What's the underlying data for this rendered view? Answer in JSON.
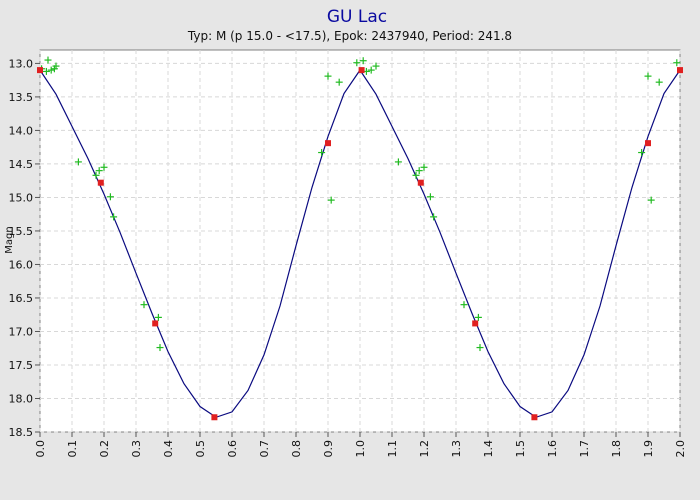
{
  "chart_data": {
    "type": "scatter",
    "title": "GU Lac",
    "subtitle": "Typ: M (p 15.0 - <17.5), Epok: 2437940, Period: 241.8",
    "xlabel": "",
    "ylabel": "Magn",
    "xlim": [
      0.0,
      2.0
    ],
    "ylim": [
      18.5,
      12.8
    ],
    "y_inverted": true,
    "grid": true,
    "x_ticks": [
      "0.0",
      "0.1",
      "0.2",
      "0.3",
      "0.4",
      "0.5",
      "0.6",
      "0.7",
      "0.8",
      "0.9",
      "1.0",
      "1.1",
      "1.2",
      "1.3",
      "1.4",
      "1.5",
      "1.6",
      "1.7",
      "1.8",
      "1.9",
      "2.0"
    ],
    "y_ticks": [
      "13.0",
      "13.5",
      "14.0",
      "14.5",
      "15.0",
      "15.5",
      "16.0",
      "16.5",
      "17.0",
      "17.5",
      "18.0",
      "18.5"
    ],
    "colors": {
      "observations": "#22bb22",
      "normals": "#e02020",
      "curve": "#0a0a80",
      "title": "#0a0aa0"
    },
    "series": [
      {
        "marker": "plus",
        "points": [
          [
            0.005,
            13.08
          ],
          [
            0.02,
            13.12
          ],
          [
            0.025,
            12.95
          ],
          [
            0.035,
            13.1
          ],
          [
            0.045,
            13.08
          ],
          [
            0.05,
            13.04
          ],
          [
            0.12,
            14.47
          ],
          [
            0.175,
            14.67
          ],
          [
            0.185,
            14.6
          ],
          [
            0.2,
            14.55
          ],
          [
            0.22,
            14.99
          ],
          [
            0.23,
            15.29
          ],
          [
            0.325,
            16.6
          ],
          [
            0.37,
            16.79
          ],
          [
            0.375,
            17.24
          ],
          [
            0.88,
            14.33
          ],
          [
            0.9,
            13.19
          ],
          [
            0.91,
            15.04
          ],
          [
            0.935,
            13.28
          ],
          [
            0.99,
            12.99
          ],
          [
            1.01,
            12.96
          ],
          [
            1.02,
            13.12
          ],
          [
            1.035,
            13.1
          ],
          [
            1.05,
            13.04
          ],
          [
            1.12,
            14.47
          ],
          [
            1.175,
            14.67
          ],
          [
            1.185,
            14.6
          ],
          [
            1.2,
            14.55
          ],
          [
            1.22,
            14.99
          ],
          [
            1.23,
            15.29
          ],
          [
            1.325,
            16.6
          ],
          [
            1.37,
            16.79
          ],
          [
            1.375,
            17.24
          ],
          [
            1.88,
            14.33
          ],
          [
            1.9,
            13.19
          ],
          [
            1.91,
            15.04
          ],
          [
            1.935,
            13.28
          ],
          [
            1.99,
            12.99
          ]
        ]
      },
      {
        "marker": "square",
        "points": [
          [
            0.0,
            13.1
          ],
          [
            0.19,
            14.78
          ],
          [
            0.36,
            16.88
          ],
          [
            0.545,
            18.28
          ],
          [
            0.9,
            14.19
          ],
          [
            1.005,
            13.1
          ],
          [
            1.19,
            14.78
          ],
          [
            1.36,
            16.88
          ],
          [
            1.545,
            18.28
          ],
          [
            1.9,
            14.19
          ],
          [
            2.0,
            13.1
          ]
        ]
      },
      {
        "marker": "line",
        "points": [
          [
            0.0,
            13.1
          ],
          [
            0.05,
            13.46
          ],
          [
            0.1,
            13.94
          ],
          [
            0.15,
            14.42
          ],
          [
            0.2,
            14.95
          ],
          [
            0.25,
            15.52
          ],
          [
            0.3,
            16.13
          ],
          [
            0.35,
            16.73
          ],
          [
            0.4,
            17.3
          ],
          [
            0.45,
            17.78
          ],
          [
            0.5,
            18.12
          ],
          [
            0.55,
            18.28
          ],
          [
            0.6,
            18.2
          ],
          [
            0.65,
            17.88
          ],
          [
            0.7,
            17.35
          ],
          [
            0.75,
            16.62
          ],
          [
            0.8,
            15.72
          ],
          [
            0.85,
            14.85
          ],
          [
            0.9,
            14.09
          ],
          [
            0.95,
            13.45
          ],
          [
            1.0,
            13.1
          ],
          [
            1.05,
            13.46
          ],
          [
            1.1,
            13.94
          ],
          [
            1.15,
            14.42
          ],
          [
            1.2,
            14.95
          ],
          [
            1.25,
            15.52
          ],
          [
            1.3,
            16.13
          ],
          [
            1.35,
            16.73
          ],
          [
            1.4,
            17.3
          ],
          [
            1.45,
            17.78
          ],
          [
            1.5,
            18.12
          ],
          [
            1.55,
            18.28
          ],
          [
            1.6,
            18.2
          ],
          [
            1.65,
            17.88
          ],
          [
            1.7,
            17.35
          ],
          [
            1.75,
            16.62
          ],
          [
            1.8,
            15.72
          ],
          [
            1.85,
            14.85
          ],
          [
            1.9,
            14.09
          ],
          [
            1.95,
            13.45
          ],
          [
            2.0,
            13.1
          ]
        ]
      }
    ]
  }
}
